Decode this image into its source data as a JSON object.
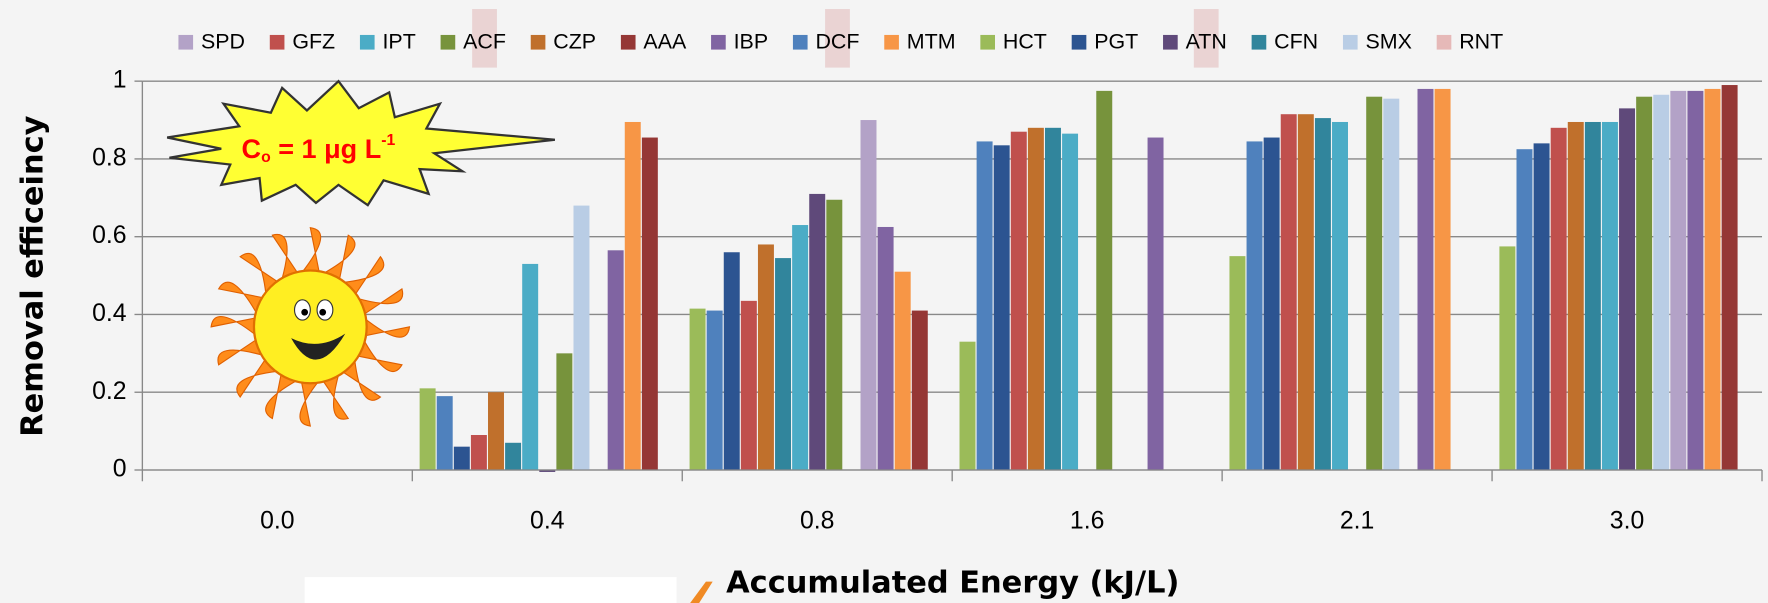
{
  "chart_data": {
    "type": "bar",
    "x_label": "Accumulated Energy (kJ/L)",
    "y_label": "Removal efficeincy",
    "annotation": {
      "c": "C",
      "sub": "o",
      "main": " = 1 μg L",
      "sup": "-1"
    },
    "categories": [
      "0.0",
      "0.4",
      "0.8",
      "1.6",
      "2.1",
      "3.0"
    ],
    "ylim": [
      0,
      1
    ],
    "yticks": [
      0,
      0.2,
      0.4,
      0.6,
      0.8,
      1
    ],
    "grid": true,
    "legend": "top",
    "series": [
      {
        "name": "SPD",
        "color": "#b3a2c7",
        "values": [
          null,
          null,
          0.9,
          null,
          null,
          0.975
        ]
      },
      {
        "name": "GFZ",
        "color": "#c0504d",
        "values": [
          null,
          0.09,
          0.435,
          0.87,
          0.915,
          0.88
        ]
      },
      {
        "name": "IPT",
        "color": "#4bacc6",
        "values": [
          null,
          0.53,
          0.63,
          0.865,
          0.895,
          0.895
        ]
      },
      {
        "name": "ACF",
        "color": "#77933c",
        "values": [
          null,
          0.3,
          0.695,
          0.975,
          0.96,
          0.96
        ]
      },
      {
        "name": "CZP",
        "color": "#c0702c",
        "values": [
          null,
          0.2,
          0.58,
          0.88,
          0.915,
          0.895
        ]
      },
      {
        "name": "AAA",
        "color": "#953735",
        "values": [
          null,
          0.855,
          0.41,
          null,
          null,
          0.99
        ]
      },
      {
        "name": "IBP",
        "color": "#8064a2",
        "values": [
          null,
          0.565,
          0.625,
          0.855,
          0.98,
          0.975
        ]
      },
      {
        "name": "DCF",
        "color": "#4f81bd",
        "values": [
          null,
          0.19,
          0.41,
          0.845,
          0.845,
          0.825
        ]
      },
      {
        "name": "MTM",
        "color": "#f79646",
        "values": [
          null,
          0.895,
          0.51,
          null,
          0.98,
          0.98
        ]
      },
      {
        "name": "HCT",
        "color": "#9bbb59",
        "values": [
          null,
          0.21,
          0.415,
          0.33,
          0.55,
          0.575
        ]
      },
      {
        "name": "PGT",
        "color": "#2c5491",
        "values": [
          null,
          0.06,
          0.56,
          0.835,
          0.855,
          0.84
        ]
      },
      {
        "name": "ATN",
        "color": "#5f497a",
        "values": [
          null,
          -0.005,
          0.71,
          null,
          null,
          0.93
        ]
      },
      {
        "name": "CFN",
        "color": "#31859c",
        "values": [
          null,
          0.07,
          0.545,
          0.88,
          0.905,
          0.895
        ]
      },
      {
        "name": "SMX",
        "color": "#b9cde5",
        "values": [
          null,
          0.68,
          null,
          null,
          0.955,
          0.965
        ]
      },
      {
        "name": "RNT",
        "color": "#e6b9b8",
        "values": [
          null,
          null,
          null,
          null,
          null,
          null
        ]
      }
    ]
  }
}
